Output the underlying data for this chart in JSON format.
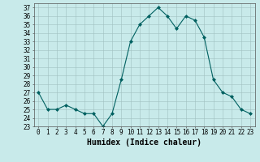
{
  "x": [
    0,
    1,
    2,
    3,
    4,
    5,
    6,
    7,
    8,
    9,
    10,
    11,
    12,
    13,
    14,
    15,
    16,
    17,
    18,
    19,
    20,
    21,
    22,
    23
  ],
  "y": [
    27,
    25,
    25,
    25.5,
    25,
    24.5,
    24.5,
    23,
    24.5,
    28.5,
    33,
    35,
    36,
    37,
    36,
    34.5,
    36,
    35.5,
    33.5,
    28.5,
    27,
    26.5,
    25,
    24.5
  ],
  "line_color": "#006060",
  "marker": "D",
  "marker_size": 2,
  "bg_color": "#c8eaea",
  "grid_color": "#a0c0c0",
  "xlabel": "Humidex (Indice chaleur)",
  "xlim": [
    -0.5,
    23.5
  ],
  "ylim": [
    23,
    37.5
  ],
  "yticks": [
    23,
    24,
    25,
    26,
    27,
    28,
    29,
    30,
    31,
    32,
    33,
    34,
    35,
    36,
    37
  ],
  "xticks": [
    0,
    1,
    2,
    3,
    4,
    5,
    6,
    7,
    8,
    9,
    10,
    11,
    12,
    13,
    14,
    15,
    16,
    17,
    18,
    19,
    20,
    21,
    22,
    23
  ],
  "xtick_labels": [
    "0",
    "1",
    "2",
    "3",
    "4",
    "5",
    "6",
    "7",
    "8",
    "9",
    "10",
    "11",
    "12",
    "13",
    "14",
    "15",
    "16",
    "17",
    "18",
    "19",
    "20",
    "21",
    "22",
    "23"
  ],
  "tick_fontsize": 5.5,
  "xlabel_fontsize": 7
}
